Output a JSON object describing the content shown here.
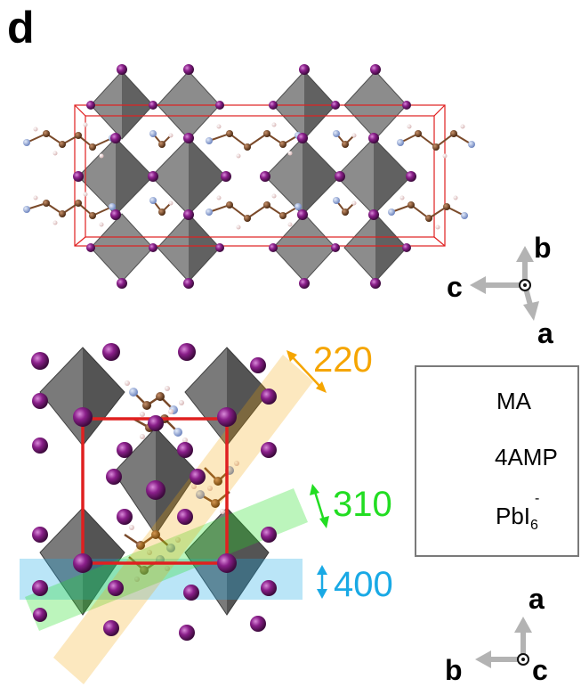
{
  "panel": {
    "letter": "d"
  },
  "top_axes": {
    "b": "b",
    "c": "c",
    "a": "a"
  },
  "bottom_axes": {
    "a": "a",
    "b": "b",
    "c": "c"
  },
  "planes": [
    {
      "label": "220",
      "color": "#f5a500"
    },
    {
      "label": "310",
      "color": "#22dd22"
    },
    {
      "label": "400",
      "color": "#19a9e5"
    }
  ],
  "legend": {
    "ma": "MA",
    "amp": "4AMP",
    "pbi_main": "PbI",
    "pbi_sub": "6",
    "pbi_sup": "-"
  },
  "colors": {
    "octahedron": "#6b6b6b",
    "iodine": "#8a1f8a",
    "carbon": "#7a4a2a",
    "nitrogen": "#9fb4e0",
    "hydrogen": "#f1dede",
    "unit_cell": "#e02020",
    "axis_arrow": "#b3b3b3"
  }
}
